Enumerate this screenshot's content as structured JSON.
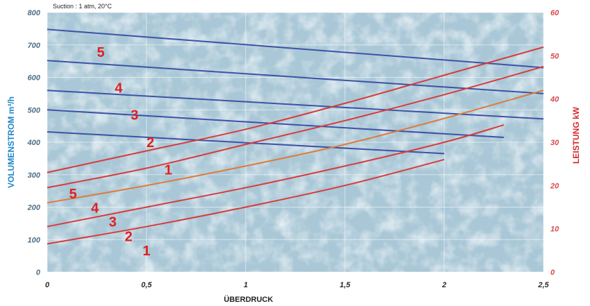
{
  "chart_data": {
    "type": "line",
    "note": "Suction : 1 atm, 20°C",
    "xlabel": "ÜBERDRUCK",
    "ylabel_left": "VOLUMENSTROM m³/h",
    "ylabel_right": "LEISTUNG kW",
    "xlim": [
      0,
      2.5
    ],
    "ylim_left": [
      0,
      800
    ],
    "ylim_right": [
      0,
      60
    ],
    "x_ticks": [
      "0",
      "0,5",
      "1",
      "1,5",
      "2",
      "2,5"
    ],
    "y_left_ticks": [
      "0",
      "100",
      "200",
      "300",
      "400",
      "500",
      "600",
      "700",
      "800"
    ],
    "y_right_ticks": [
      "0",
      "10",
      "20",
      "30",
      "40",
      "50",
      "60"
    ],
    "grid": true,
    "colors": {
      "flow": "#3e52a6",
      "power": "#d83b3b",
      "power_3": "#e07a3a",
      "label": "#e02020",
      "left_axis": "#1f86c8",
      "right_axis": "#d42a2a",
      "background": "#a9c7d6"
    },
    "flow_series": [
      {
        "name": "1",
        "axis": "left",
        "x": [
          0,
          2.0
        ],
        "y": [
          432,
          365
        ]
      },
      {
        "name": "2",
        "axis": "left",
        "x": [
          0,
          2.3
        ],
        "y": [
          500,
          415
        ]
      },
      {
        "name": "3",
        "axis": "left",
        "x": [
          0,
          2.5
        ],
        "y": [
          560,
          472
        ]
      },
      {
        "name": "4",
        "axis": "left",
        "x": [
          0,
          2.5
        ],
        "y": [
          652,
          550
        ]
      },
      {
        "name": "5",
        "axis": "left",
        "x": [
          0,
          2.5
        ],
        "y": [
          748,
          630
        ]
      }
    ],
    "power_series": [
      {
        "name": "1",
        "axis": "right",
        "x": [
          0,
          0.5,
          1.0,
          1.5,
          2.0
        ],
        "y": [
          6.5,
          10.5,
          15,
          20,
          26
        ]
      },
      {
        "name": "2",
        "axis": "right",
        "x": [
          0,
          0.5,
          1.0,
          1.5,
          2.0,
          2.3
        ],
        "y": [
          10.5,
          15,
          19.5,
          24.5,
          30,
          34
        ]
      },
      {
        "name": "3",
        "axis": "right",
        "x": [
          0,
          0.5,
          1.0,
          1.5,
          2.0,
          2.5
        ],
        "y": [
          16,
          20,
          24.5,
          29.5,
          35.5,
          42
        ]
      },
      {
        "name": "4",
        "axis": "right",
        "x": [
          0,
          0.5,
          1.0,
          1.5,
          2.0,
          2.5
        ],
        "y": [
          19.5,
          24,
          29.5,
          35,
          41,
          47.5
        ]
      },
      {
        "name": "5",
        "axis": "right",
        "x": [
          0,
          0.5,
          1.0,
          1.5,
          2.0,
          2.5
        ],
        "y": [
          23,
          28,
          33,
          39,
          45.5,
          52
        ]
      }
    ],
    "curve_labels": [
      {
        "text": "5",
        "x": 0.27,
        "y": 678
      },
      {
        "text": "4",
        "x": 0.36,
        "y": 568
      },
      {
        "text": "3",
        "x": 0.44,
        "y": 484
      },
      {
        "text": "2",
        "x": 0.52,
        "y": 400
      },
      {
        "text": "1",
        "x": 0.61,
        "y": 315
      },
      {
        "text": "5",
        "x": 0.13,
        "y": 242
      },
      {
        "text": "4",
        "x": 0.24,
        "y": 198
      },
      {
        "text": "3",
        "x": 0.33,
        "y": 155
      },
      {
        "text": "2",
        "x": 0.41,
        "y": 110
      },
      {
        "text": "1",
        "x": 0.5,
        "y": 66
      }
    ]
  }
}
